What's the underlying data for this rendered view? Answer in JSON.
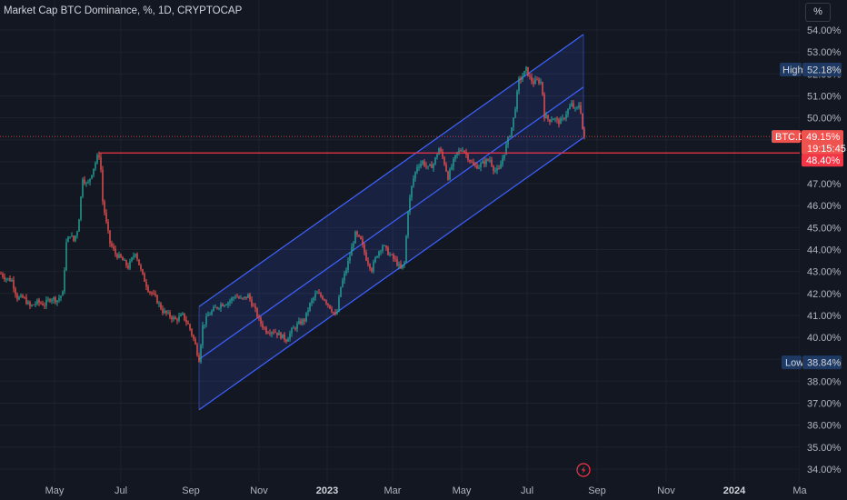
{
  "header": {
    "title": "Market Cap BTC Dominance, %, 1D, CRYPTOCAP",
    "unit": "%"
  },
  "chart_data": {
    "type": "candlestick",
    "title": "Market Cap BTC Dominance, %, 1D, CRYPTOCAP",
    "ylim": [
      33.7,
      54.9
    ],
    "y_ticks": [
      "34.00%",
      "35.00%",
      "36.00%",
      "37.00%",
      "38.00%",
      "39.00%",
      "40.00%",
      "41.00%",
      "42.00%",
      "43.00%",
      "44.00%",
      "45.00%",
      "46.00%",
      "47.00%",
      "48.00%",
      "49.00%",
      "50.00%",
      "51.00%",
      "52.00%",
      "53.00%",
      "54.00%"
    ],
    "x_ticks": [
      {
        "label": "May",
        "bold": false
      },
      {
        "label": "Jul",
        "bold": false
      },
      {
        "label": "Sep",
        "bold": false
      },
      {
        "label": "Nov",
        "bold": false
      },
      {
        "label": "2023",
        "bold": true
      },
      {
        "label": "Mar",
        "bold": false
      },
      {
        "label": "May",
        "bold": false
      },
      {
        "label": "Jul",
        "bold": false
      },
      {
        "label": "Sep",
        "bold": false
      },
      {
        "label": "Nov",
        "bold": false
      },
      {
        "label": "2024",
        "bold": true
      },
      {
        "label": "Ma",
        "bold": false
      }
    ],
    "price_path": [
      {
        "t": 0,
        "v": 42.9
      },
      {
        "t": 5,
        "v": 42.7
      },
      {
        "t": 12,
        "v": 42.6
      },
      {
        "t": 18,
        "v": 41.8
      },
      {
        "t": 25,
        "v": 41.8
      },
      {
        "t": 32,
        "v": 41.4
      },
      {
        "t": 40,
        "v": 41.6
      },
      {
        "t": 48,
        "v": 41.5
      },
      {
        "t": 55,
        "v": 41.8
      },
      {
        "t": 62,
        "v": 41.7
      },
      {
        "t": 68,
        "v": 42.0
      },
      {
        "t": 72,
        "v": 44.3
      },
      {
        "t": 76,
        "v": 44.7
      },
      {
        "t": 80,
        "v": 44.4
      },
      {
        "t": 85,
        "v": 45.0
      },
      {
        "t": 90,
        "v": 47.3
      },
      {
        "t": 95,
        "v": 46.9
      },
      {
        "t": 100,
        "v": 47.5
      },
      {
        "t": 106,
        "v": 48.2
      },
      {
        "t": 109,
        "v": 48.35
      },
      {
        "t": 112,
        "v": 46.2
      },
      {
        "t": 116,
        "v": 45.2
      },
      {
        "t": 120,
        "v": 44.3
      },
      {
        "t": 126,
        "v": 43.8
      },
      {
        "t": 132,
        "v": 43.6
      },
      {
        "t": 140,
        "v": 43.2
      },
      {
        "t": 148,
        "v": 43.9
      },
      {
        "t": 155,
        "v": 42.9
      },
      {
        "t": 162,
        "v": 42.2
      },
      {
        "t": 170,
        "v": 41.8
      },
      {
        "t": 178,
        "v": 41.2
      },
      {
        "t": 185,
        "v": 41.0
      },
      {
        "t": 192,
        "v": 40.8
      },
      {
        "t": 200,
        "v": 41.0
      },
      {
        "t": 207,
        "v": 40.5
      },
      {
        "t": 213,
        "v": 39.8
      },
      {
        "t": 218,
        "v": 39.0
      },
      {
        "t": 222,
        "v": 40.5
      },
      {
        "t": 228,
        "v": 41.0
      },
      {
        "t": 235,
        "v": 41.3
      },
      {
        "t": 242,
        "v": 41.5
      },
      {
        "t": 250,
        "v": 41.6
      },
      {
        "t": 258,
        "v": 41.9
      },
      {
        "t": 265,
        "v": 41.7
      },
      {
        "t": 272,
        "v": 41.9
      },
      {
        "t": 280,
        "v": 41.2
      },
      {
        "t": 285,
        "v": 40.7
      },
      {
        "t": 292,
        "v": 40.3
      },
      {
        "t": 300,
        "v": 40.3
      },
      {
        "t": 307,
        "v": 40.1
      },
      {
        "t": 314,
        "v": 39.9
      },
      {
        "t": 320,
        "v": 40.3
      },
      {
        "t": 327,
        "v": 40.6
      },
      {
        "t": 334,
        "v": 40.8
      },
      {
        "t": 340,
        "v": 41.5
      },
      {
        "t": 347,
        "v": 42.0
      },
      {
        "t": 355,
        "v": 41.8
      },
      {
        "t": 362,
        "v": 41.4
      },
      {
        "t": 369,
        "v": 40.9
      },
      {
        "t": 374,
        "v": 42.3
      },
      {
        "t": 380,
        "v": 43.1
      },
      {
        "t": 385,
        "v": 43.9
      },
      {
        "t": 390,
        "v": 44.7
      },
      {
        "t": 396,
        "v": 44.4
      },
      {
        "t": 402,
        "v": 43.6
      },
      {
        "t": 408,
        "v": 43.1
      },
      {
        "t": 414,
        "v": 43.8
      },
      {
        "t": 420,
        "v": 44.2
      },
      {
        "t": 427,
        "v": 43.8
      },
      {
        "t": 434,
        "v": 43.5
      },
      {
        "t": 440,
        "v": 43.1
      },
      {
        "t": 444,
        "v": 43.4
      },
      {
        "t": 448,
        "v": 45.8
      },
      {
        "t": 453,
        "v": 47.1
      },
      {
        "t": 458,
        "v": 47.8
      },
      {
        "t": 464,
        "v": 48.0
      },
      {
        "t": 470,
        "v": 47.7
      },
      {
        "t": 476,
        "v": 47.9
      },
      {
        "t": 482,
        "v": 48.6
      },
      {
        "t": 487,
        "v": 48.1
      },
      {
        "t": 492,
        "v": 47.3
      },
      {
        "t": 497,
        "v": 47.9
      },
      {
        "t": 502,
        "v": 48.4
      },
      {
        "t": 508,
        "v": 48.6
      },
      {
        "t": 514,
        "v": 48.2
      },
      {
        "t": 520,
        "v": 47.8
      },
      {
        "t": 526,
        "v": 47.8
      },
      {
        "t": 532,
        "v": 48.0
      },
      {
        "t": 538,
        "v": 48.1
      },
      {
        "t": 543,
        "v": 47.6
      },
      {
        "t": 548,
        "v": 47.6
      },
      {
        "t": 553,
        "v": 48.3
      },
      {
        "t": 558,
        "v": 49.0
      },
      {
        "t": 563,
        "v": 49.7
      },
      {
        "t": 566,
        "v": 50.5
      },
      {
        "t": 570,
        "v": 51.7
      },
      {
        "t": 574,
        "v": 51.9
      },
      {
        "t": 578,
        "v": 52.2
      },
      {
        "t": 582,
        "v": 51.8
      },
      {
        "t": 586,
        "v": 51.6
      },
      {
        "t": 591,
        "v": 51.7
      },
      {
        "t": 595,
        "v": 51.6
      },
      {
        "t": 598,
        "v": 50.1
      },
      {
        "t": 603,
        "v": 49.9
      },
      {
        "t": 608,
        "v": 50.0
      },
      {
        "t": 613,
        "v": 49.8
      },
      {
        "t": 618,
        "v": 49.9
      },
      {
        "t": 623,
        "v": 50.3
      },
      {
        "t": 628,
        "v": 50.6
      },
      {
        "t": 633,
        "v": 50.3
      },
      {
        "t": 637,
        "v": 50.7
      },
      {
        "t": 640,
        "v": 49.5
      },
      {
        "t": 642,
        "v": 49.15
      }
    ],
    "channel": {
      "upper": {
        "start": 41.4,
        "end": 53.8
      },
      "middle": {
        "start": 39.0,
        "end": 51.4
      },
      "lower": {
        "start": 36.7,
        "end": 49.1
      }
    },
    "resistance_line": 48.4,
    "last_price_line": 49.15,
    "labels": {
      "high": {
        "text": "High",
        "value": "52.18%"
      },
      "low": {
        "text": "Low",
        "value": "38.84%"
      },
      "current": {
        "symbol": "BTC.D",
        "value": "49.15%",
        "countdown": "19:15:45"
      },
      "resistance": {
        "value": "48.40%"
      }
    },
    "colors": {
      "up": "#26a69a",
      "down": "#ef5350",
      "channel": "#3f63ff",
      "channel_fill": "rgba(63,99,255,0.14)",
      "resistance": "#f23645",
      "label_blue": "#1e3a64",
      "grid": "#1e222d",
      "axis_text": "#b2b5be"
    }
  }
}
